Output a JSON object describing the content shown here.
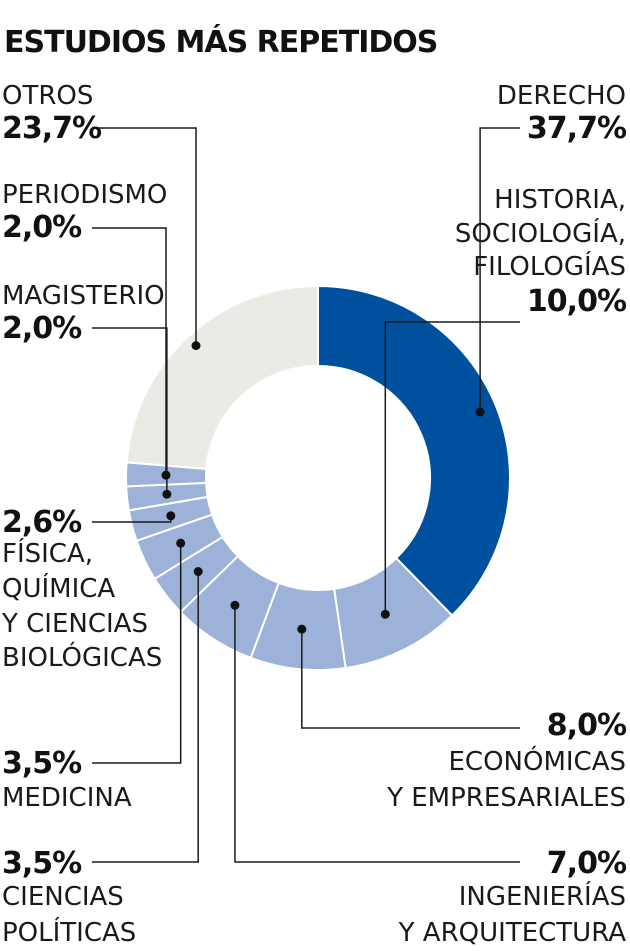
{
  "title": "ESTUDIOS MÁS REPETIDOS",
  "colors": {
    "primary": "#0050a0",
    "secondary": "#9db2d9",
    "other": "#ebebe6",
    "text": "#1a1a1a",
    "lines": "#1a1a1a"
  },
  "chart_data": {
    "type": "pie",
    "variant": "donut",
    "title": "ESTUDIOS MÁS REPETIDOS",
    "slices": [
      {
        "name": "DERECHO",
        "label_lines": [
          "DERECHO"
        ],
        "value": 37.7,
        "value_label": "37,7%",
        "color": "#0050a0"
      },
      {
        "name": "HISTORIA, SOCIOLOGÍA, FILOLOGÍAS",
        "label_lines": [
          "HISTORIA,",
          "SOCIOLOGÍA,",
          "FILOLOGÍAS"
        ],
        "value": 10.0,
        "value_label": "10,0%",
        "color": "#9db2d9"
      },
      {
        "name": "ECONÓMICAS Y EMPRESARIALES",
        "label_lines": [
          "ECONÓMICAS",
          "Y EMPRESARIALES"
        ],
        "value": 8.0,
        "value_label": "8,0%",
        "color": "#9db2d9"
      },
      {
        "name": "INGENIERÍAS Y ARQUITECTURA",
        "label_lines": [
          "INGENIERÍAS",
          "Y ARQUITECTURA"
        ],
        "value": 7.0,
        "value_label": "7,0%",
        "color": "#9db2d9"
      },
      {
        "name": "CIENCIAS POLÍTICAS",
        "label_lines": [
          "CIENCIAS",
          "POLÍTICAS"
        ],
        "value": 3.5,
        "value_label": "3,5%",
        "color": "#9db2d9"
      },
      {
        "name": "MEDICINA",
        "label_lines": [
          "MEDICINA"
        ],
        "value": 3.5,
        "value_label": "3,5%",
        "color": "#9db2d9"
      },
      {
        "name": "FÍSICA, QUÍMICA Y CIENCIAS BIOLÓGICAS",
        "label_lines": [
          "FÍSICA,",
          "QUÍMICA",
          "Y CIENCIAS",
          "BIOLÓGICAS"
        ],
        "value": 2.6,
        "value_label": "2,6%",
        "color": "#9db2d9"
      },
      {
        "name": "MAGISTERIO",
        "label_lines": [
          "MAGISTERIO"
        ],
        "value": 2.0,
        "value_label": "2,0%",
        "color": "#9db2d9"
      },
      {
        "name": "PERIODISMO",
        "label_lines": [
          "PERIODISMO"
        ],
        "value": 2.0,
        "value_label": "2,0%",
        "color": "#9db2d9"
      },
      {
        "name": "OTROS",
        "label_lines": [
          "OTROS"
        ],
        "value": 23.7,
        "value_label": "23,7%",
        "color": "#ebebe6"
      }
    ]
  }
}
